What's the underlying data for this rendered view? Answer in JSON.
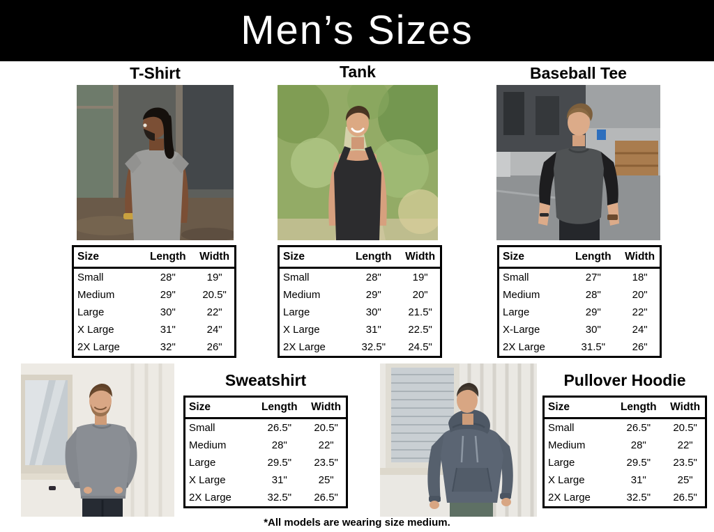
{
  "header": {
    "title": "Men’s Sizes"
  },
  "columns": [
    "Size",
    "Length",
    "Width"
  ],
  "products": [
    {
      "title": "T-Shirt",
      "photo": "man-in-gray-t-shirt",
      "rows": [
        [
          "Small",
          "28\"",
          "19\""
        ],
        [
          "Medium",
          "29\"",
          "20.5\""
        ],
        [
          "Large",
          "30\"",
          "22\""
        ],
        [
          "X Large",
          "31\"",
          "24\""
        ],
        [
          "2X Large",
          "32\"",
          "26\""
        ]
      ]
    },
    {
      "title": "Tank",
      "photo": "man-in-black-tank-top",
      "rows": [
        [
          "Small",
          "28\"",
          "19\""
        ],
        [
          "Medium",
          "29\"",
          "20\""
        ],
        [
          "Large",
          "30\"",
          "21.5\""
        ],
        [
          "X Large",
          "31\"",
          "22.5\""
        ],
        [
          "2X Large",
          "32.5\"",
          "24.5\""
        ]
      ]
    },
    {
      "title": "Baseball Tee",
      "photo": "man-in-raglan-baseball-tee",
      "rows": [
        [
          "Small",
          "27\"",
          "18\""
        ],
        [
          "Medium",
          "28\"",
          "20\""
        ],
        [
          "Large",
          "29\"",
          "22\""
        ],
        [
          "X-Large",
          "30\"",
          "24\""
        ],
        [
          "2X Large",
          "31.5\"",
          "26\""
        ]
      ]
    },
    {
      "title": "Sweatshirt",
      "photo": "man-in-gray-crewneck-sweatshirt",
      "rows": [
        [
          "Small",
          "26.5\"",
          "20.5\""
        ],
        [
          "Medium",
          "28\"",
          "22\""
        ],
        [
          "Large",
          "29.5\"",
          "23.5\""
        ],
        [
          "X Large",
          "31\"",
          "25\""
        ],
        [
          "2X Large",
          "32.5\"",
          "26.5\""
        ]
      ]
    },
    {
      "title": "Pullover Hoodie",
      "photo": "man-in-slate-pullover-hoodie",
      "rows": [
        [
          "Small",
          "26.5\"",
          "20.5\""
        ],
        [
          "Medium",
          "28\"",
          "22\""
        ],
        [
          "Large",
          "29.5\"",
          "23.5\""
        ],
        [
          "X Large",
          "31\"",
          "25\""
        ],
        [
          "2X Large",
          "32.5\"",
          "26.5\""
        ]
      ]
    }
  ],
  "footnote": "*All models are wearing size medium.",
  "colors": {
    "banner_bg": "#000000",
    "banner_text": "#ffffff",
    "table_border": "#000000",
    "page_bg": "#ffffff"
  }
}
